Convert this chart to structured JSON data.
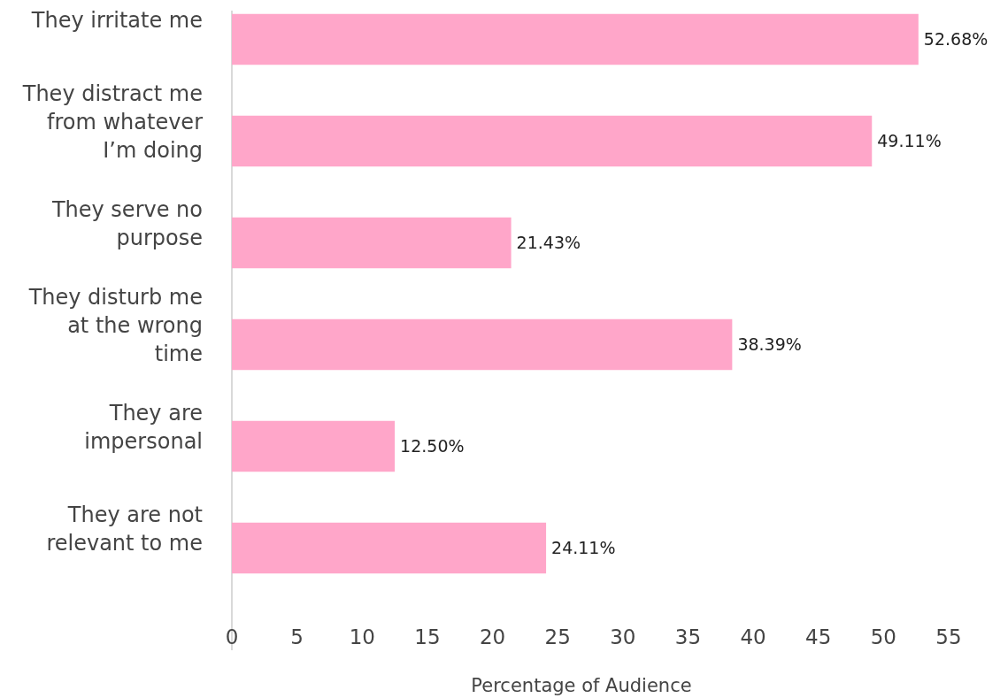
{
  "chart_data": {
    "type": "bar",
    "orientation": "horizontal",
    "xlabel": "Percentage of Audience",
    "categories": [
      "They irritate me",
      "They distract me from whatever I’m doing",
      "They serve no purpose",
      "They disturb me at the wrong time",
      "They are impersonal",
      "They are not relevant to me"
    ],
    "values": [
      52.68,
      49.11,
      21.43,
      38.39,
      12.5,
      24.11
    ],
    "value_labels": [
      "52.68%",
      "49.11%",
      "21.43%",
      "38.39%",
      "12.50%",
      "24.11%"
    ],
    "color": "#ffa6c9",
    "xlim": [
      0,
      55
    ],
    "xticks": [
      0,
      5,
      10,
      15,
      20,
      25,
      30,
      35,
      40,
      45,
      50,
      55
    ],
    "grid": false
  }
}
